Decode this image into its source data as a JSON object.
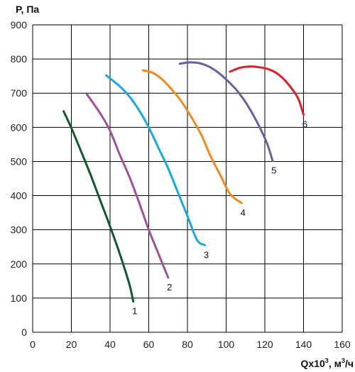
{
  "chart_data": {
    "type": "line",
    "title": "",
    "ylabel": "P, Па",
    "xlabel": "Qx10",
    "xlabel_sup": "3",
    "xlabel_unit": ", м",
    "xlabel_unit_sup": "3",
    "xlabel_tail": "/ч",
    "xlim": [
      0,
      160
    ],
    "ylim": [
      0,
      900
    ],
    "xticks": [
      "0",
      "20",
      "40",
      "60",
      "80",
      "100",
      "120",
      "140",
      "160"
    ],
    "yticks": [
      "0",
      "100",
      "200",
      "300",
      "400",
      "500",
      "600",
      "700",
      "800",
      "900"
    ],
    "grid": true,
    "series": [
      {
        "name": "1",
        "color": "#0f5a2a",
        "points": [
          [
            16,
            647
          ],
          [
            20,
            598
          ],
          [
            25,
            530
          ],
          [
            30,
            460
          ],
          [
            35,
            385
          ],
          [
            40,
            310
          ],
          [
            45,
            230
          ],
          [
            50,
            140
          ],
          [
            52,
            90
          ]
        ]
      },
      {
        "name": "2",
        "color": "#a2509c",
        "points": [
          [
            28,
            697
          ],
          [
            35,
            640
          ],
          [
            40,
            590
          ],
          [
            45,
            520
          ],
          [
            50,
            455
          ],
          [
            55,
            380
          ],
          [
            60,
            300
          ],
          [
            65,
            230
          ],
          [
            70,
            160
          ]
        ]
      },
      {
        "name": "3",
        "color": "#17a9e1",
        "points": [
          [
            38,
            752
          ],
          [
            45,
            720
          ],
          [
            50,
            690
          ],
          [
            55,
            650
          ],
          [
            60,
            600
          ],
          [
            65,
            540
          ],
          [
            70,
            480
          ],
          [
            75,
            410
          ],
          [
            80,
            340
          ],
          [
            85,
            270
          ],
          [
            89,
            255
          ]
        ]
      },
      {
        "name": "4",
        "color": "#f0891e",
        "points": [
          [
            57,
            767
          ],
          [
            62,
            760
          ],
          [
            67,
            740
          ],
          [
            72,
            710
          ],
          [
            77,
            675
          ],
          [
            82,
            630
          ],
          [
            87,
            580
          ],
          [
            92,
            515
          ],
          [
            97,
            460
          ],
          [
            102,
            405
          ],
          [
            108,
            378
          ]
        ]
      },
      {
        "name": "5",
        "color": "#6a5ea3",
        "points": [
          [
            76,
            786
          ],
          [
            81,
            790
          ],
          [
            86,
            788
          ],
          [
            91,
            778
          ],
          [
            96,
            760
          ],
          [
            101,
            735
          ],
          [
            106,
            705
          ],
          [
            111,
            665
          ],
          [
            116,
            615
          ],
          [
            121,
            555
          ],
          [
            124,
            502
          ]
        ]
      },
      {
        "name": "6",
        "color": "#e21f26",
        "points": [
          [
            102,
            763
          ],
          [
            107,
            774
          ],
          [
            112,
            778
          ],
          [
            117,
            776
          ],
          [
            122,
            770
          ],
          [
            127,
            755
          ],
          [
            132,
            727
          ],
          [
            137,
            687
          ],
          [
            140,
            637
          ]
        ]
      }
    ]
  }
}
